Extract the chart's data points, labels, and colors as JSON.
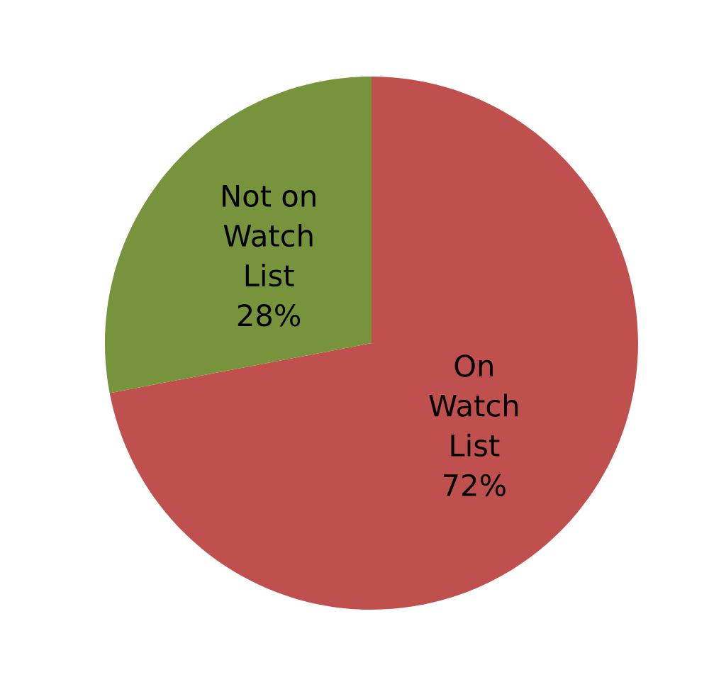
{
  "chart_data": {
    "type": "pie",
    "categories": [
      "On\nWatch\nList",
      "Not on\nWatch\nList"
    ],
    "values": [
      72,
      28
    ],
    "colors": [
      "#c0504d",
      "#77933c"
    ],
    "value_labels": [
      "72%",
      "28%"
    ]
  }
}
